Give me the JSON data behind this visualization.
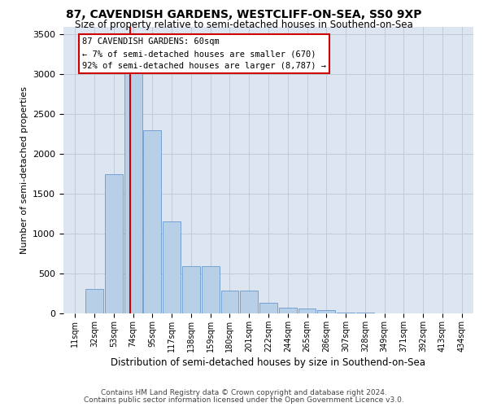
{
  "title1": "87, CAVENDISH GARDENS, WESTCLIFF-ON-SEA, SS0 9XP",
  "title2": "Size of property relative to semi-detached houses in Southend-on-Sea",
  "xlabel": "Distribution of semi-detached houses by size in Southend-on-Sea",
  "ylabel": "Number of semi-detached properties",
  "footer1": "Contains HM Land Registry data © Crown copyright and database right 2024.",
  "footer2": "Contains public sector information licensed under the Open Government Licence v3.0.",
  "annotation_line0": "87 CAVENDISH GARDENS: 60sqm",
  "annotation_line1": "← 7% of semi-detached houses are smaller (670)",
  "annotation_line2": "92% of semi-detached houses are larger (8,787) →",
  "categories": [
    "11sqm",
    "32sqm",
    "53sqm",
    "74sqm",
    "95sqm",
    "117sqm",
    "138sqm",
    "159sqm",
    "180sqm",
    "201sqm",
    "222sqm",
    "244sqm",
    "265sqm",
    "286sqm",
    "307sqm",
    "328sqm",
    "349sqm",
    "371sqm",
    "392sqm",
    "413sqm",
    "434sqm"
  ],
  "values": [
    5,
    310,
    1750,
    3050,
    2300,
    1150,
    590,
    590,
    290,
    285,
    130,
    70,
    65,
    40,
    15,
    10,
    5,
    3,
    2,
    1,
    1
  ],
  "vline_x": 2.85,
  "bar_color": "#b8cfe8",
  "bar_edge_color": "#6699cc",
  "vline_color": "#cc0000",
  "ax_facecolor": "#dde6f0",
  "grid_color": "#c0ccd8",
  "ann_facecolor": "#ffffff",
  "ann_edgecolor": "#cc0000",
  "fig_facecolor": "#ffffff",
  "ylim": [
    0,
    3600
  ],
  "yticks": [
    0,
    500,
    1000,
    1500,
    2000,
    2500,
    3000,
    3500
  ]
}
